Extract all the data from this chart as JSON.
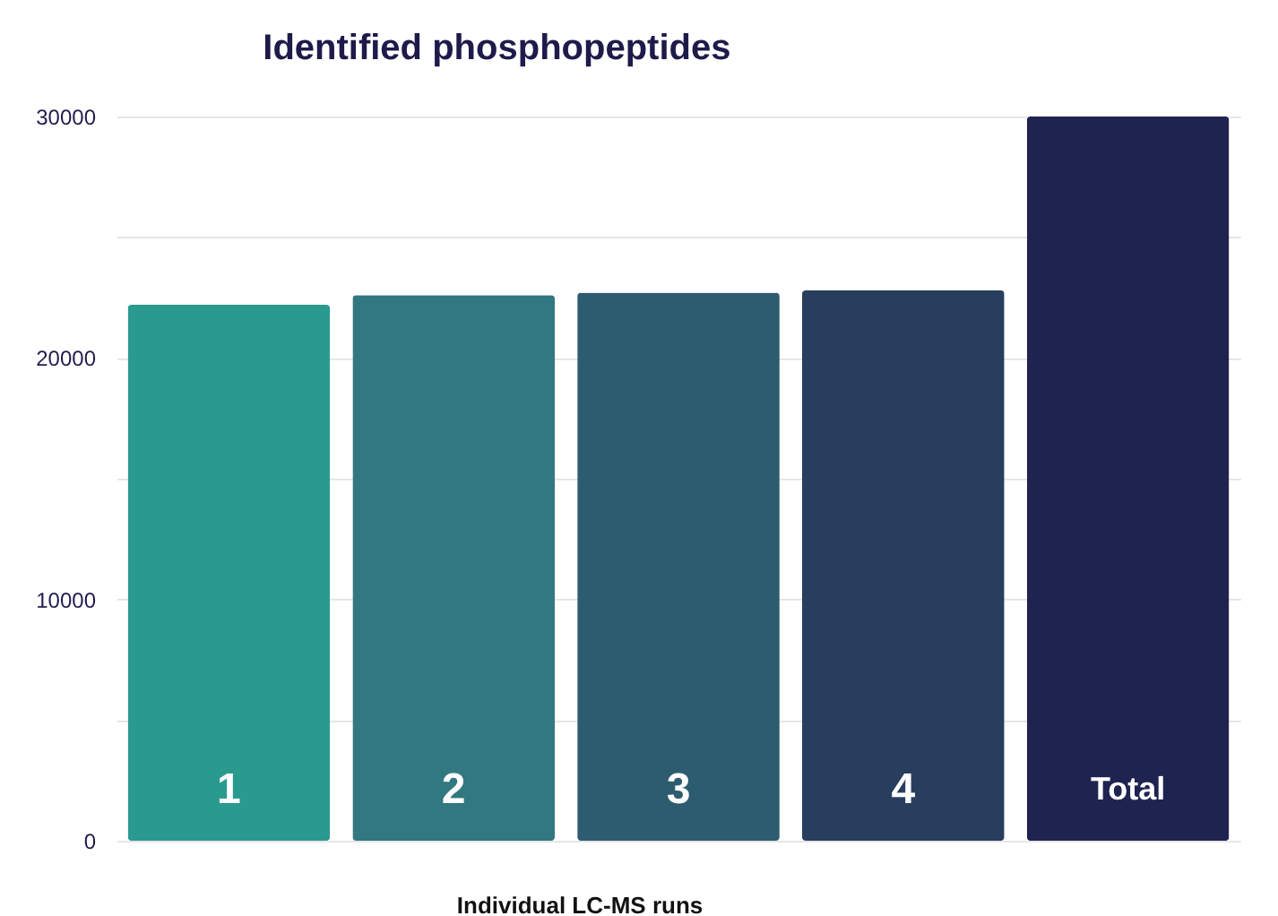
{
  "chart_data": {
    "type": "bar",
    "title": "Identified phosphopeptides",
    "xlabel": "Individual LC-MS runs",
    "categories": [
      "1",
      "2",
      "3",
      "4",
      "Total"
    ],
    "values": [
      22200,
      22600,
      22700,
      22800,
      30000
    ],
    "colors": [
      "#2a9a8f",
      "#317880",
      "#2d5c70",
      "#283e5f",
      "#1f2350"
    ],
    "ylim": [
      0,
      30000
    ],
    "yticks": [
      0,
      {
        "value": 5000,
        "label": null
      },
      10000,
      {
        "value": 15000,
        "label": null
      },
      20000,
      {
        "value": 25000,
        "label": null
      },
      30000
    ],
    "grid": "y"
  }
}
